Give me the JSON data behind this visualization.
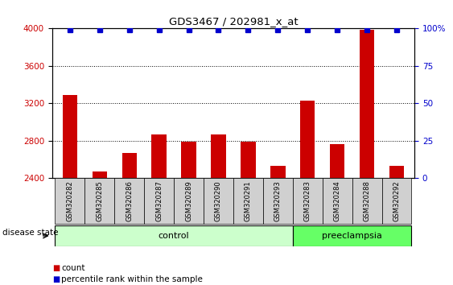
{
  "title": "GDS3467 / 202981_x_at",
  "samples": [
    "GSM320282",
    "GSM320285",
    "GSM320286",
    "GSM320287",
    "GSM320289",
    "GSM320290",
    "GSM320291",
    "GSM320293",
    "GSM320283",
    "GSM320284",
    "GSM320288",
    "GSM320292"
  ],
  "counts": [
    3290,
    2470,
    2670,
    2870,
    2790,
    2870,
    2790,
    2530,
    3230,
    2760,
    3990,
    2530
  ],
  "percentiles": [
    99,
    99,
    99,
    99,
    99,
    99,
    99,
    99,
    99,
    99,
    99,
    99
  ],
  "ylim_left": [
    2400,
    4000
  ],
  "ylim_right": [
    0,
    100
  ],
  "yticks_left": [
    2400,
    2800,
    3200,
    3600,
    4000
  ],
  "yticks_right": [
    0,
    25,
    50,
    75,
    100
  ],
  "bar_color": "#cc0000",
  "marker_color": "#0000cc",
  "control_indices": [
    0,
    1,
    2,
    3,
    4,
    5,
    6,
    7
  ],
  "preeclampsia_indices": [
    8,
    9,
    10,
    11
  ],
  "control_label": "control",
  "preeclampsia_label": "preeclampsia",
  "disease_state_label": "disease state",
  "legend_count_label": "count",
  "legend_percentile_label": "percentile rank within the sample",
  "control_bg": "#ccffcc",
  "preeclampsia_bg": "#66ff66",
  "xtick_bg": "#d0d0d0",
  "grid_color": "#000000",
  "baseline": 2400,
  "fig_width": 5.63,
  "fig_height": 3.54,
  "fig_dpi": 100
}
